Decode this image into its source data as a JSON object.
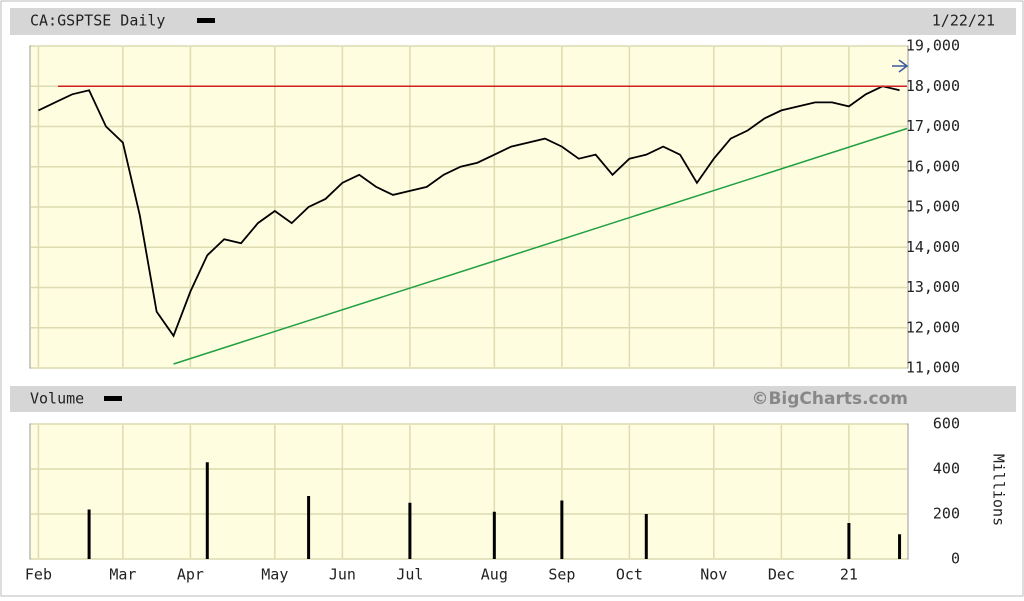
{
  "chart_data": [
    {
      "type": "line",
      "title": "CA:GSPTSE Daily",
      "subtitle": "1/22/21",
      "color": "#000000",
      "values": [
        17400,
        17600,
        17800,
        17900,
        17000,
        16600,
        14800,
        12400,
        11800,
        12900,
        13800,
        14200,
        14100,
        14600,
        14900,
        14600,
        15000,
        15200,
        15600,
        15800,
        15500,
        15300,
        15400,
        15500,
        15800,
        16000,
        16100,
        16300,
        16500,
        16600,
        16700,
        16500,
        16200,
        16300,
        15800,
        16200,
        16300,
        16500,
        16300,
        15600,
        16200,
        16700,
        16900,
        17200,
        17400,
        17500,
        17600,
        17600,
        17500,
        17800,
        18000,
        17900
      ],
      "ylim": [
        11000,
        19000
      ],
      "yticks": [
        {
          "value": 11000,
          "label": "11,000"
        },
        {
          "value": 12000,
          "label": "12,000"
        },
        {
          "value": 13000,
          "label": "13,000"
        },
        {
          "value": 14000,
          "label": "14,000"
        },
        {
          "value": 15000,
          "label": "15,000"
        },
        {
          "value": 16000,
          "label": "16,000"
        },
        {
          "value": 17000,
          "label": "17,000"
        },
        {
          "value": 18000,
          "label": "18,000"
        },
        {
          "value": 19000,
          "label": "19,000"
        }
      ],
      "grid": true,
      "lines": [
        {
          "color": "#d02020",
          "values": [
            18000,
            18000
          ]
        },
        {
          "color": "#20a040",
          "values": [
            11100,
            16950
          ]
        }
      ]
    },
    {
      "type": "bar",
      "title": "Volume",
      "source": "©BigCharts.com",
      "y_label": "Millions",
      "color": "#000000",
      "categories": [
        "Feb",
        null,
        null,
        null,
        null,
        "Mar",
        null,
        null,
        null,
        "Apr",
        null,
        null,
        null,
        null,
        "May",
        null,
        null,
        null,
        "Jun",
        null,
        null,
        null,
        "Jul",
        null,
        null,
        null,
        null,
        "Aug",
        null,
        null,
        null,
        "Sep",
        null,
        null,
        null,
        "Oct",
        null,
        null,
        null,
        null,
        "Nov",
        null,
        null,
        null,
        "Dec",
        null,
        null,
        null,
        "21",
        null,
        null,
        null
      ],
      "values": [
        0,
        0,
        0,
        220,
        0,
        0,
        0,
        0,
        0,
        0,
        430,
        0,
        0,
        0,
        0,
        0,
        280,
        0,
        0,
        0,
        0,
        0,
        250,
        0,
        0,
        0,
        0,
        210,
        0,
        0,
        0,
        260,
        0,
        0,
        0,
        0,
        200,
        0,
        0,
        0,
        0,
        0,
        0,
        0,
        0,
        0,
        0,
        0,
        160,
        0,
        0,
        110
      ],
      "ylim": [
        0,
        600
      ],
      "yticks": [
        0,
        200,
        400,
        600
      ],
      "grid": true
    }
  ]
}
